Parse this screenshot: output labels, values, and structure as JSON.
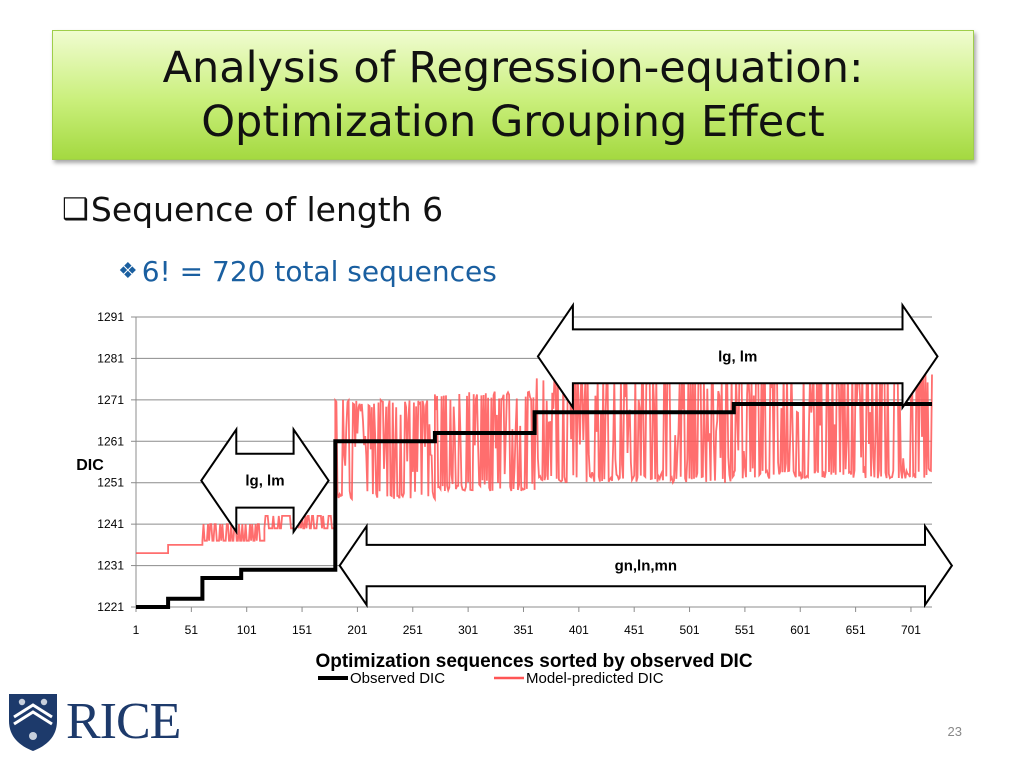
{
  "slide": {
    "title_line_1": "Analysis of Regression-equation:",
    "title_line_2": "Optimization Grouping Effect",
    "bullet_1_glyph": "❑",
    "bullet_1": "Sequence of length 6",
    "bullet_2_glyph": "❖",
    "bullet_2": "6! = 720 total sequences",
    "logo_text": "RICE",
    "page_number": "23",
    "colors": {
      "title_green": "#b6e660",
      "bullet_2_blue": "#1a5fa0",
      "rice_navy": "#1d3a6b"
    }
  },
  "chart_data": {
    "type": "line",
    "ylabel": "DIC",
    "xlabel": "Optimization sequences sorted by observed DIC",
    "ylim": [
      1221,
      1291
    ],
    "xlim": [
      1,
      720
    ],
    "y_ticks": [
      1221,
      1231,
      1241,
      1251,
      1261,
      1271,
      1281,
      1291
    ],
    "x_ticks": [
      1,
      51,
      101,
      151,
      201,
      251,
      301,
      351,
      401,
      451,
      501,
      551,
      601,
      651,
      701
    ],
    "grid": "horizontal",
    "legend_position": "bottom-center",
    "series": [
      {
        "name": "Observed DIC",
        "color": "#000000",
        "points": [
          [
            1,
            1221
          ],
          [
            30,
            1221
          ],
          [
            30,
            1223
          ],
          [
            61,
            1223
          ],
          [
            61,
            1228
          ],
          [
            96,
            1228
          ],
          [
            96,
            1230
          ],
          [
            181,
            1230
          ],
          [
            181,
            1261
          ],
          [
            271,
            1261
          ],
          [
            271,
            1263
          ],
          [
            361,
            1263
          ],
          [
            361,
            1268
          ],
          [
            541,
            1268
          ],
          [
            541,
            1270
          ],
          [
            720,
            1270
          ]
        ]
      },
      {
        "name": "Model-predicted DIC",
        "color": "#ff5555",
        "segments": [
          {
            "x": [
              1,
              30
            ],
            "min": 1234,
            "max": 1234
          },
          {
            "x": [
              30,
              61
            ],
            "min": 1236,
            "max": 1236
          },
          {
            "x": [
              61,
              117
            ],
            "min": 1237,
            "max": 1241
          },
          {
            "x": [
              117,
              150
            ],
            "min": 1240,
            "max": 1243
          },
          {
            "x": [
              150,
              181
            ],
            "min": 1240,
            "max": 1243
          },
          {
            "x": [
              181,
              271
            ],
            "min": 1247,
            "max": 1271
          },
          {
            "x": [
              271,
              361
            ],
            "min": 1249,
            "max": 1273
          },
          {
            "x": [
              361,
              541
            ],
            "min": 1251,
            "max": 1277
          },
          {
            "x": [
              541,
              720
            ],
            "min": 1252,
            "max": 1279
          }
        ]
      }
    ],
    "annotations": [
      {
        "label": "lg, lm",
        "x": [
          60,
          175
        ],
        "y_top": 1258,
        "y_bottom": 1245
      },
      {
        "label": "lg, lm",
        "x": [
          364,
          725
        ],
        "y_top": 1288,
        "y_bottom": 1275
      },
      {
        "label": "gn,ln,mn",
        "x": [
          185,
          738
        ],
        "y_top": 1236,
        "y_bottom": 1226
      }
    ]
  }
}
